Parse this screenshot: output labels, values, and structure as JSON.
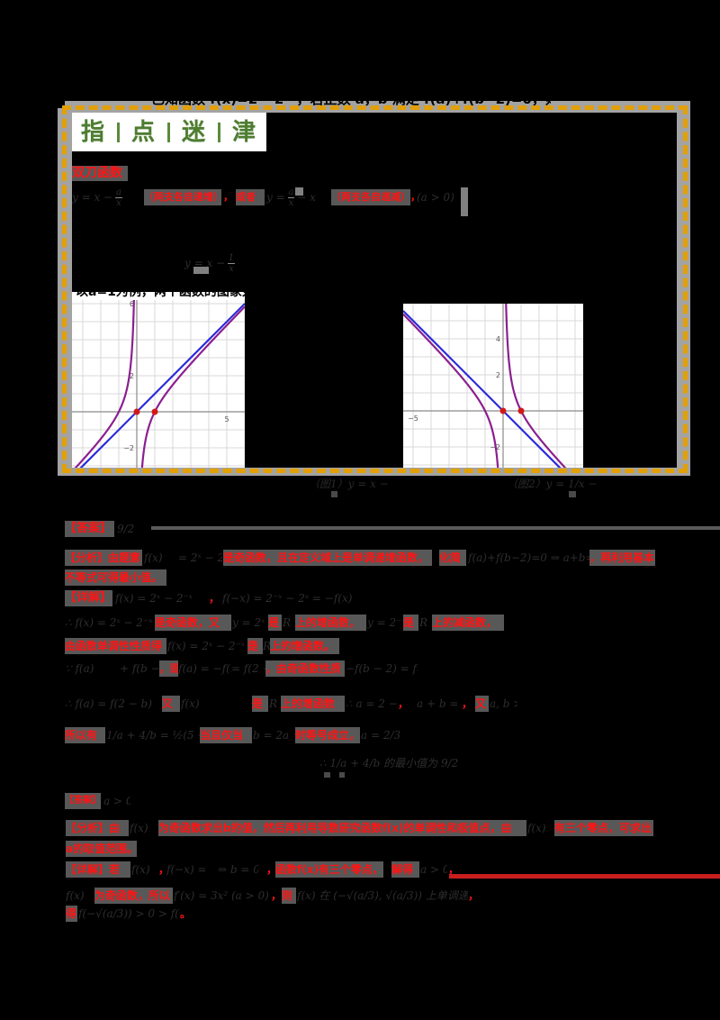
{
  "colors": {
    "highlight_text": "#ff1414",
    "highlight_bg": "#585858",
    "frame_band": "#a3a3a3",
    "frame_dash": "#e2a006",
    "header_green": "#4e7d32",
    "curve": "#8b1f8f",
    "asymptote": "#2b2bd8",
    "point": "#d21818",
    "grid": "#d9d9d9",
    "axis": "#8a8a8a",
    "tick_label": "#555555",
    "rule_red": "#c81e1e"
  },
  "guide_box": {
    "overlap_text": "已知函数 f(x)=2ˣ−2⁻ˣ，若正数 a，b 满足 f(a)+f(b−2)=0，则 1/a+4/b 的最小值为",
    "header": {
      "chars": [
        "指",
        "点",
        "迷",
        "津"
      ]
    },
    "term_label": "双刀函数",
    "definition": {
      "f1_lhs": "y = x −",
      "f1_num": "a",
      "f1_den": "x",
      "r1": "（两支各自递增）",
      "c1": "，",
      "r2": "或者",
      "f2_lhs": "y =",
      "f2_num": "a",
      "f2_den": "x",
      "f2_rhs": "− x",
      "r3": "（两支各自递减）",
      "c2": "，",
      "f3": "(a > 0)"
    },
    "note_formula": {
      "lhs": "y = x −",
      "num": "1",
      "den": "x"
    },
    "figure_intro": "以a=1为例，两个函数的图象如下：",
    "figures": [
      {
        "function": "y = x - 1/x",
        "p": 1,
        "q": -1,
        "asymptote": "y = x",
        "asymptote_slope": 1,
        "xlim": [
          -3.6,
          6.0
        ],
        "ylim": [
          -3.1,
          6.2
        ],
        "grid_step": 1,
        "x_tick_labels": [
          {
            "value": 5,
            "label": "5"
          }
        ],
        "y_tick_labels": [
          {
            "value": 6,
            "label": "6"
          },
          {
            "value": 2,
            "label": "2"
          },
          {
            "value": -2,
            "label": "−2"
          }
        ],
        "points": [
          [
            0,
            0
          ],
          [
            1,
            0
          ]
        ]
      },
      {
        "function": "y = 1/x - x",
        "p": -1,
        "q": 1,
        "asymptote": "y = -x",
        "asymptote_slope": -1,
        "xlim": [
          -5.55,
          4.45
        ],
        "ylim": [
          -3.15,
          5.95
        ],
        "grid_step": 1,
        "x_tick_labels": [
          {
            "value": -5,
            "label": "−5"
          }
        ],
        "y_tick_labels": [
          {
            "value": 4,
            "label": "4"
          },
          {
            "value": 2,
            "label": "2"
          },
          {
            "value": -2,
            "label": "−2"
          }
        ],
        "points": [
          [
            0,
            0
          ],
          [
            1,
            0
          ]
        ]
      }
    ],
    "captions": {
      "fig1": "（图1）y = x − 1/x",
      "fig2": "（图2）y = 1/x − x"
    }
  },
  "solution1": {
    "lines": [
      [
        "【答案】",
        "9/2"
      ],
      [
        "【分析】由题意",
        "f(x)",
        "= 2ˣ − 2⁻ˣ",
        "是奇函数，且在定义域上是单调递增函数，",
        "化简",
        "f(a)+f(b−2)=0 ⇒ a+b=2",
        "，再利用基本"
      ],
      [
        "不等式可得最小值。"
      ],
      [
        "【详解】",
        "f(x) = 2ˣ − 2⁻ˣ",
        "，",
        "f(−x) = 2⁻ˣ − 2ˣ = −f(x)"
      ],
      [
        "∴ f(x) = 2ˣ − 2⁻ˣ",
        "是奇函数，又",
        "y = 2ˣ",
        "是",
        "R",
        "上的增函数，",
        "y = 2⁻ˣ",
        "是",
        "R",
        "上的减函数，"
      ],
      [
        "由函数单调性性质得",
        "f(x) = 2ˣ − 2⁻ˣ",
        "是",
        "R",
        "上的增函数。"
      ],
      [
        "∵ f(a)",
        "+ f(b − 2) = 0",
        "，即",
        "f(a) = −f(b − 2)",
        "= f(2 − b)",
        "，由奇函数性质",
        "−f(b − 2) = f(2 − b)"
      ],
      [
        "∴ f(a) = f(2 − b)",
        "又",
        "f(x)",
        "是",
        "R",
        "上的增函数",
        "∴ a = 2 − b",
        "，",
        "a + b = 2",
        "，",
        "又",
        "a, b > 0"
      ],
      [
        "所以有",
        "1/a + 4/b = ½(5 + b/a + 4a/b) ≥ 9/2",
        "当且仅当",
        "b = 2a",
        "时等号成立，",
        "a = 2/3"
      ],
      [
        "∴ 1/a + 4/b 的最小值为 9/2"
      ]
    ]
  },
  "solution2": {
    "lines": [
      [
        "【答案】",
        "a > 0"
      ],
      [
        "【分析】由",
        "f(x)",
        "为奇函数求出b的值，然后再利用导数研究函数f(x)的单调性和极值点，由",
        "f(x)",
        "有三个零点，可求出"
      ],
      [
        "a的取值范围。"
      ],
      [
        "【详解】若",
        "f(x)",
        "，",
        "f(−x) = −f(x)",
        "⇒ b = 0",
        "，",
        "函数f(x)有三个零点，",
        "解得",
        "a > 0",
        "，"
      ],
      [
        "f(x)",
        "为奇函数，所以",
        "f′(x) = 3x² − a",
        "(a > 0)",
        "，",
        "则",
        "f(x) 在 (−√(a/3), √(a/3)) 上单调递减",
        "，"
      ],
      [
        "得",
        "f(−√(a/3)) > 0 > f(√(a/3))",
        "。"
      ]
    ]
  }
}
